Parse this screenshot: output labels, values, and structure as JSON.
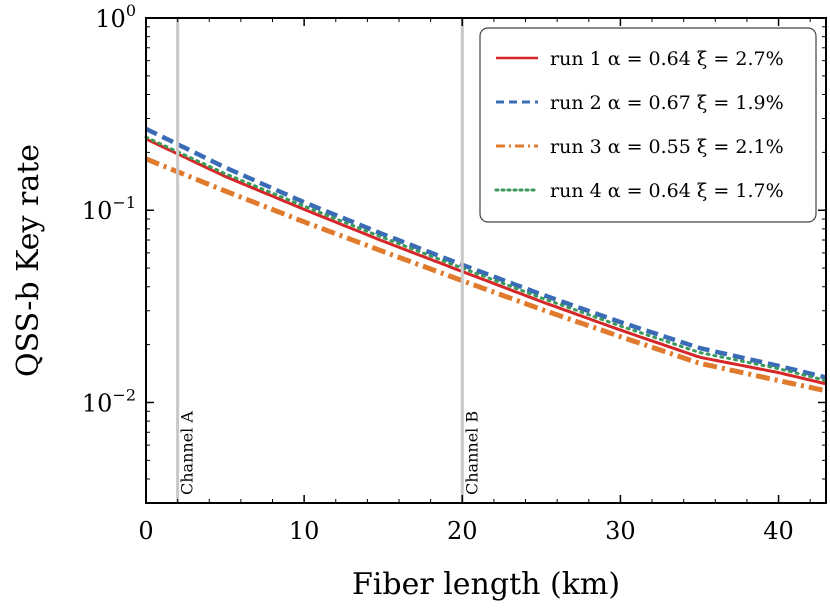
{
  "chart_data": {
    "type": "line",
    "xlabel": "Fiber length (km)",
    "ylabel": "QSS-b Key rate",
    "xlim": [
      0,
      43
    ],
    "ylim": [
      0.003,
      1
    ],
    "yscale": "log",
    "xticks": [
      0,
      10,
      20,
      30,
      40
    ],
    "xtick_labels": [
      "0",
      "10",
      "20",
      "30",
      "40"
    ],
    "yticks": [
      0.01,
      0.1,
      1
    ],
    "ytick_labels": [
      {
        "base": "10",
        "exp": "−2"
      },
      {
        "base": "10",
        "exp": "−1"
      },
      {
        "base": "10",
        "exp": "0"
      }
    ],
    "grid": false,
    "legend_position": "top-right",
    "annotations": [
      {
        "text": "Channel A",
        "x": 2
      },
      {
        "text": "Channel B",
        "x": 20
      }
    ],
    "series": [
      {
        "name": "run 1 α = 0.64 ξ = 2.7%",
        "color": "#d62728",
        "style": "solid",
        "x": [
          0,
          5,
          10,
          15,
          20,
          25,
          30,
          35,
          40,
          43
        ],
        "y": [
          0.235,
          0.15,
          0.101,
          0.069,
          0.048,
          0.0335,
          0.0238,
          0.0172,
          0.0143,
          0.0125
        ]
      },
      {
        "name": "run 2 α = 0.67 ξ = 1.9%",
        "color": "#3a6bb7",
        "style": "dashed",
        "x": [
          0,
          5,
          10,
          15,
          20,
          25,
          30,
          35,
          40,
          43
        ],
        "y": [
          0.265,
          0.167,
          0.11,
          0.075,
          0.052,
          0.0365,
          0.0262,
          0.0192,
          0.0155,
          0.0135
        ]
      },
      {
        "name": "run 3 α = 0.55 ξ = 2.1%",
        "color": "#e07b2e",
        "style": "dashdot",
        "x": [
          0,
          5,
          10,
          15,
          20,
          25,
          30,
          35,
          40,
          43
        ],
        "y": [
          0.185,
          0.126,
          0.087,
          0.061,
          0.043,
          0.0305,
          0.022,
          0.016,
          0.013,
          0.0115
        ]
      },
      {
        "name": "run 4 α = 0.64 ξ = 1.7%",
        "color": "#3a9a5a",
        "style": "dotted",
        "x": [
          0,
          5,
          10,
          15,
          20,
          25,
          30,
          35,
          40,
          43
        ],
        "y": [
          0.24,
          0.155,
          0.105,
          0.072,
          0.05,
          0.035,
          0.025,
          0.0182,
          0.015,
          0.013
        ]
      }
    ]
  }
}
